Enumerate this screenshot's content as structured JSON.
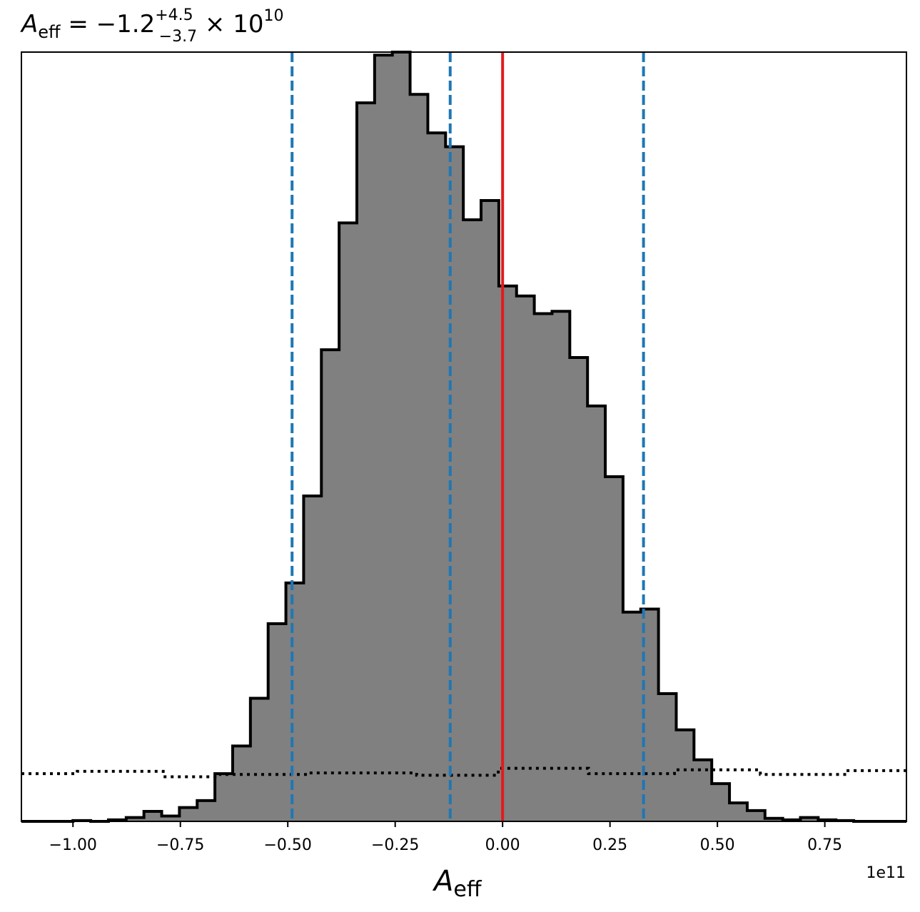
{
  "chart_data": {
    "type": "histogram",
    "title": {
      "symbol": "A",
      "subscript": "eff",
      "equals": " = −1.2",
      "sup": "+4.5",
      "sub": "−3.7",
      "times": " × 10",
      "exponent": "10"
    },
    "xlabel": {
      "symbol": "A",
      "subscript": "eff"
    },
    "x_offset_label": "1e11",
    "xlim": [
      -1.12,
      0.94
    ],
    "ylim": [
      0,
      1.0
    ],
    "x_ticks": [
      {
        "value": -1.0,
        "label": "−1.00"
      },
      {
        "value": -0.75,
        "label": "−0.75"
      },
      {
        "value": -0.5,
        "label": "−0.50"
      },
      {
        "value": -0.25,
        "label": "−0.25"
      },
      {
        "value": 0.0,
        "label": "0.00"
      },
      {
        "value": 0.25,
        "label": "0.25"
      },
      {
        "value": 0.5,
        "label": "0.50"
      },
      {
        "value": 0.75,
        "label": "0.75"
      }
    ],
    "bin_start": -1.0,
    "bin_width": 0.0413,
    "counts": [
      0.001,
      0.0,
      0.002,
      0.005,
      0.013,
      0.007,
      0.018,
      0.027,
      0.062,
      0.098,
      0.16,
      0.257,
      0.31,
      0.423,
      0.613,
      0.778,
      0.934,
      0.996,
      1.0,
      0.945,
      0.895,
      0.877,
      0.782,
      0.807,
      0.696,
      0.683,
      0.66,
      0.663,
      0.603,
      0.54,
      0.448,
      0.272,
      0.276,
      0.166,
      0.119,
      0.08,
      0.049,
      0.024,
      0.014,
      0.004,
      0.002,
      0.005,
      0.002,
      0.001
    ],
    "prior": [
      {
        "x0": -1.12,
        "x1": -0.99,
        "y": 0.062
      },
      {
        "x0": -0.99,
        "x1": -0.79,
        "y": 0.065
      },
      {
        "x0": -0.79,
        "x1": -0.66,
        "y": 0.058
      },
      {
        "x0": -0.66,
        "x1": -0.45,
        "y": 0.061
      },
      {
        "x0": -0.45,
        "x1": -0.2,
        "y": 0.063
      },
      {
        "x0": -0.2,
        "x1": -0.01,
        "y": 0.06
      },
      {
        "x0": -0.01,
        "x1": 0.2,
        "y": 0.069
      },
      {
        "x0": 0.2,
        "x1": 0.4,
        "y": 0.062
      },
      {
        "x0": 0.4,
        "x1": 0.6,
        "y": 0.067
      },
      {
        "x0": 0.6,
        "x1": 0.8,
        "y": 0.061
      },
      {
        "x0": 0.8,
        "x1": 0.94,
        "y": 0.066
      }
    ],
    "quantile_lines": [
      -0.49,
      -0.122,
      0.328
    ],
    "truth_line": 0.0,
    "colors": {
      "hist_fill": "#808080",
      "hist_edge": "#000000",
      "quantile": "#1f77b4",
      "truth": "#e31a1c",
      "prior": "#000000"
    }
  }
}
